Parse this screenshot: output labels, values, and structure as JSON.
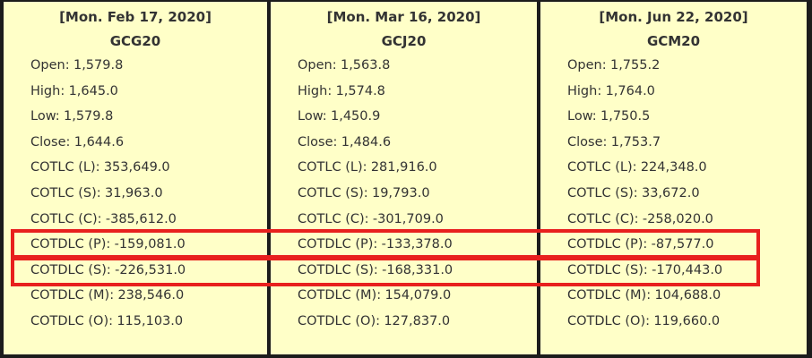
{
  "panels": [
    {
      "date": "[Mon. Feb 17, 2020]",
      "symbol": "GCG20",
      "rows": [
        {
          "label": "Open:",
          "value": "1,579.8"
        },
        {
          "label": "High:",
          "value": "1,645.0"
        },
        {
          "label": "Low:",
          "value": "1,579.8"
        },
        {
          "label": "Close:",
          "value": "1,644.6"
        },
        {
          "label": "COTLC (L):",
          "value": "353,649.0"
        },
        {
          "label": "COTLC (S):",
          "value": "31,963.0"
        },
        {
          "label": "COTLC (C):",
          "value": "-385,612.0"
        },
        {
          "label": "COTDLC (P):",
          "value": "-159,081.0"
        },
        {
          "label": "COTDLC (S):",
          "value": "-226,531.0"
        },
        {
          "label": "COTDLC (M):",
          "value": "238,546.0"
        },
        {
          "label": "COTDLC (O):",
          "value": "115,103.0"
        }
      ]
    },
    {
      "date": "[Mon. Mar 16, 2020]",
      "symbol": "GCJ20",
      "rows": [
        {
          "label": "Open:",
          "value": "1,563.8"
        },
        {
          "label": "High:",
          "value": "1,574.8"
        },
        {
          "label": "Low:",
          "value": "1,450.9"
        },
        {
          "label": "Close:",
          "value": "1,484.6"
        },
        {
          "label": "COTLC (L):",
          "value": "281,916.0"
        },
        {
          "label": "COTLC (S):",
          "value": "19,793.0"
        },
        {
          "label": "COTLC (C):",
          "value": "-301,709.0"
        },
        {
          "label": "COTDLC (P):",
          "value": "-133,378.0"
        },
        {
          "label": "COTDLC (S):",
          "value": "-168,331.0"
        },
        {
          "label": "COTDLC (M):",
          "value": "154,079.0"
        },
        {
          "label": "COTDLC (O):",
          "value": "127,837.0"
        }
      ]
    },
    {
      "date": "[Mon. Jun 22, 2020]",
      "symbol": "GCM20",
      "rows": [
        {
          "label": "Open:",
          "value": "1,755.2"
        },
        {
          "label": "High:",
          "value": "1,764.0"
        },
        {
          "label": "Low:",
          "value": "1,750.5"
        },
        {
          "label": "Close:",
          "value": "1,753.7"
        },
        {
          "label": "COTLC (L):",
          "value": "224,348.0"
        },
        {
          "label": "COTLC (S):",
          "value": "33,672.0"
        },
        {
          "label": "COTLC (C):",
          "value": "-258,020.0"
        },
        {
          "label": "COTDLC (P):",
          "value": "-87,577.0"
        },
        {
          "label": "COTDLC (S):",
          "value": "-170,443.0"
        },
        {
          "label": "COTDLC (M):",
          "value": "104,688.0"
        },
        {
          "label": "COTDLC (O):",
          "value": "119,660.0"
        }
      ]
    }
  ]
}
